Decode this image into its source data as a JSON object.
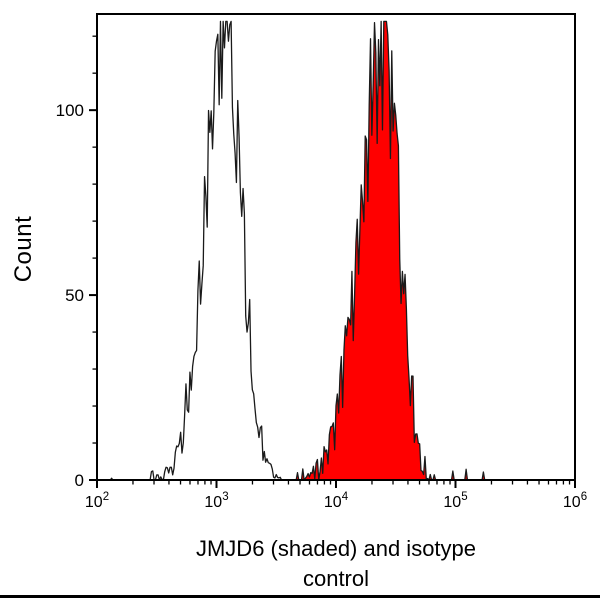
{
  "figure": {
    "ylabel": "Count",
    "xlabel_line1": "JMJD6 (shaded) and isotype",
    "xlabel_line2": "control"
  },
  "chart_data": {
    "type": "area",
    "subtype": "flow-cytometry-histogram-overlay",
    "title": "",
    "xlabel": "JMJD6 (shaded) and isotype control",
    "ylabel": "Count",
    "x_axis": {
      "scale": "log10",
      "min_exponent": 2,
      "max_exponent": 6,
      "tick_base": "10",
      "tick_exponents": [
        2,
        3,
        4,
        5,
        6
      ],
      "minor_ticks": "log decades 2-9"
    },
    "y_axis": {
      "ticks": [
        0,
        50,
        100
      ],
      "minor_tick_step": 10,
      "max": 126
    },
    "legend_position": "none",
    "grid": false,
    "series": [
      {
        "name": "isotype control",
        "style": "open",
        "stroke": "#1a1a1a",
        "fill": "none",
        "peak_center_log10": 3.07,
        "approx_peak_x": 1200,
        "peak_count": 119,
        "sigma_left_log10": 0.17,
        "sigma_right_log10": 0.14,
        "noise_factor": 1.6,
        "baseline_spike_ranges_log10": [
          [
            2.05,
            2.6
          ]
        ],
        "baseline_spike_prob": 0.12,
        "baseline_spike_max": 3
      },
      {
        "name": "JMJD6",
        "style": "shaded",
        "stroke": "#1a1a1a",
        "fill": "#ff0000",
        "peak_center_log10": 4.4,
        "approx_peak_x": 25000,
        "peak_count": 116,
        "sigma_left_log10": 0.2,
        "sigma_right_log10": 0.13,
        "noise_factor": 2.0,
        "baseline_spike_ranges_log10": [
          [
            2.3,
            2.55
          ],
          [
            3.55,
            3.78
          ],
          [
            4.85,
            5.25
          ]
        ],
        "baseline_spike_prob": 0.1,
        "baseline_spike_max": 3
      }
    ]
  }
}
